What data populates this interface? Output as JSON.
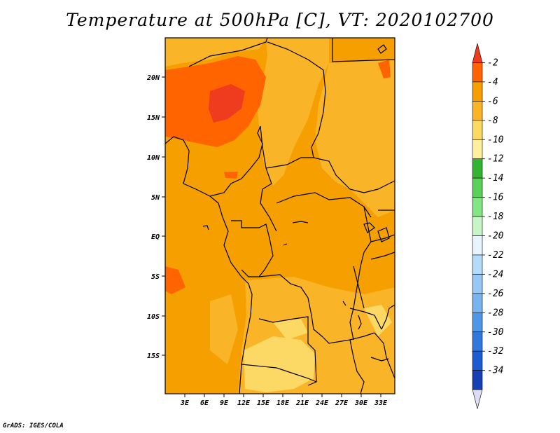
{
  "title": "Temperature at 500hPa [C], VT: 2020102700",
  "credit": "GrADS: IGES/COLA",
  "map": {
    "lat_labels": [
      "20N",
      "15N",
      "10N",
      "5N",
      "EQ",
      "5S",
      "10S",
      "15S"
    ],
    "lon_labels": [
      "3E",
      "6E",
      "9E",
      "12E",
      "15E",
      "18E",
      "21E",
      "24E",
      "27E",
      "30E",
      "33E"
    ]
  },
  "colorbar": {
    "labels": [
      "-2",
      "-4",
      "-6",
      "-8",
      "-10",
      "-12",
      "-14",
      "-16",
      "-18",
      "-20",
      "-22",
      "-24",
      "-26",
      "-28",
      "-30",
      "-32",
      "-34"
    ],
    "colors": [
      "#f03c1e",
      "#ff6400",
      "#f5a000",
      "#fab428",
      "#fcd864",
      "#fff0a0",
      "#32b432",
      "#5ad25a",
      "#82e682",
      "#c8f5c8",
      "#e6f5ff",
      "#b4dcfa",
      "#96c8f5",
      "#78b4f0",
      "#5096e6",
      "#3278dc",
      "#1e5ad2",
      "#1440b4",
      "#0a1e78"
    ]
  }
}
